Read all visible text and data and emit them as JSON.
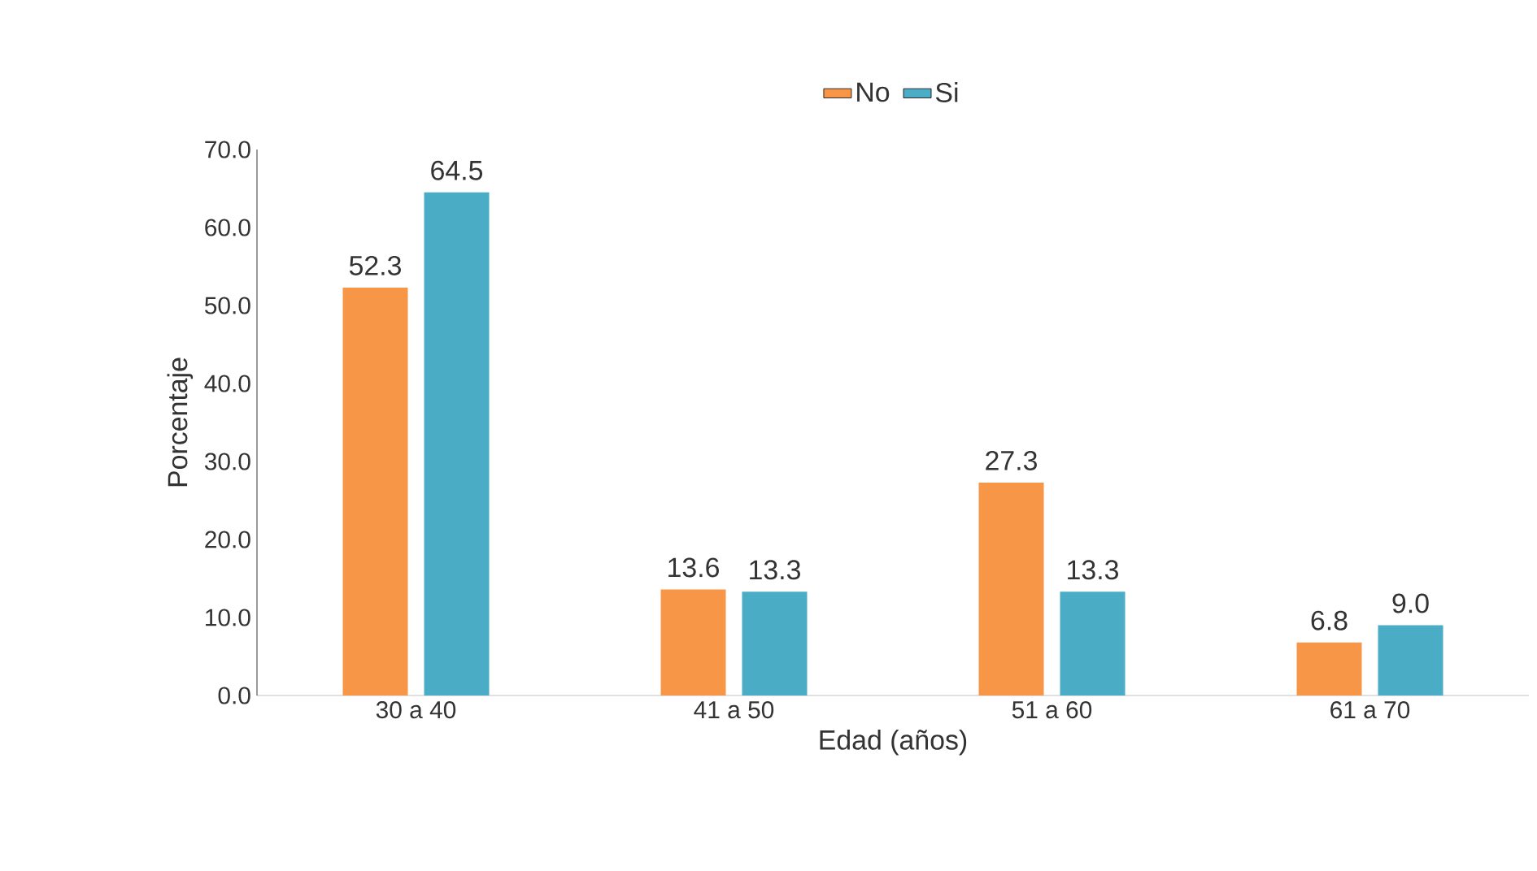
{
  "chart_data": {
    "type": "bar",
    "xlabel": "Edad (años)",
    "ylabel": "Porcentaje",
    "categories": [
      "30 a 40",
      "41 a 50",
      "51 a 60",
      "61 a 70"
    ],
    "series": [
      {
        "name": "No",
        "color": "#f79646",
        "values": [
          52.3,
          13.6,
          27.3,
          6.8
        ],
        "value_labels": [
          "52.3",
          "13.6",
          "27.3",
          "6.8"
        ]
      },
      {
        "name": "Si",
        "color": "#4bacc6",
        "values": [
          64.5,
          13.3,
          13.3,
          9.0
        ],
        "value_labels": [
          "64.5",
          "13.3",
          "13.3",
          "9.0"
        ]
      }
    ],
    "ylim": [
      0,
      70
    ],
    "yticks": [
      {
        "value": 0,
        "label": "0.0"
      },
      {
        "value": 10,
        "label": "10.0"
      },
      {
        "value": 20,
        "label": "20.0"
      },
      {
        "value": 30,
        "label": "30.0"
      },
      {
        "value": 40,
        "label": "40.0"
      },
      {
        "value": 50,
        "label": "50.0"
      },
      {
        "value": 60,
        "label": "60.0"
      },
      {
        "value": 70,
        "label": "70.0"
      }
    ],
    "legend": "top",
    "grid": false
  }
}
